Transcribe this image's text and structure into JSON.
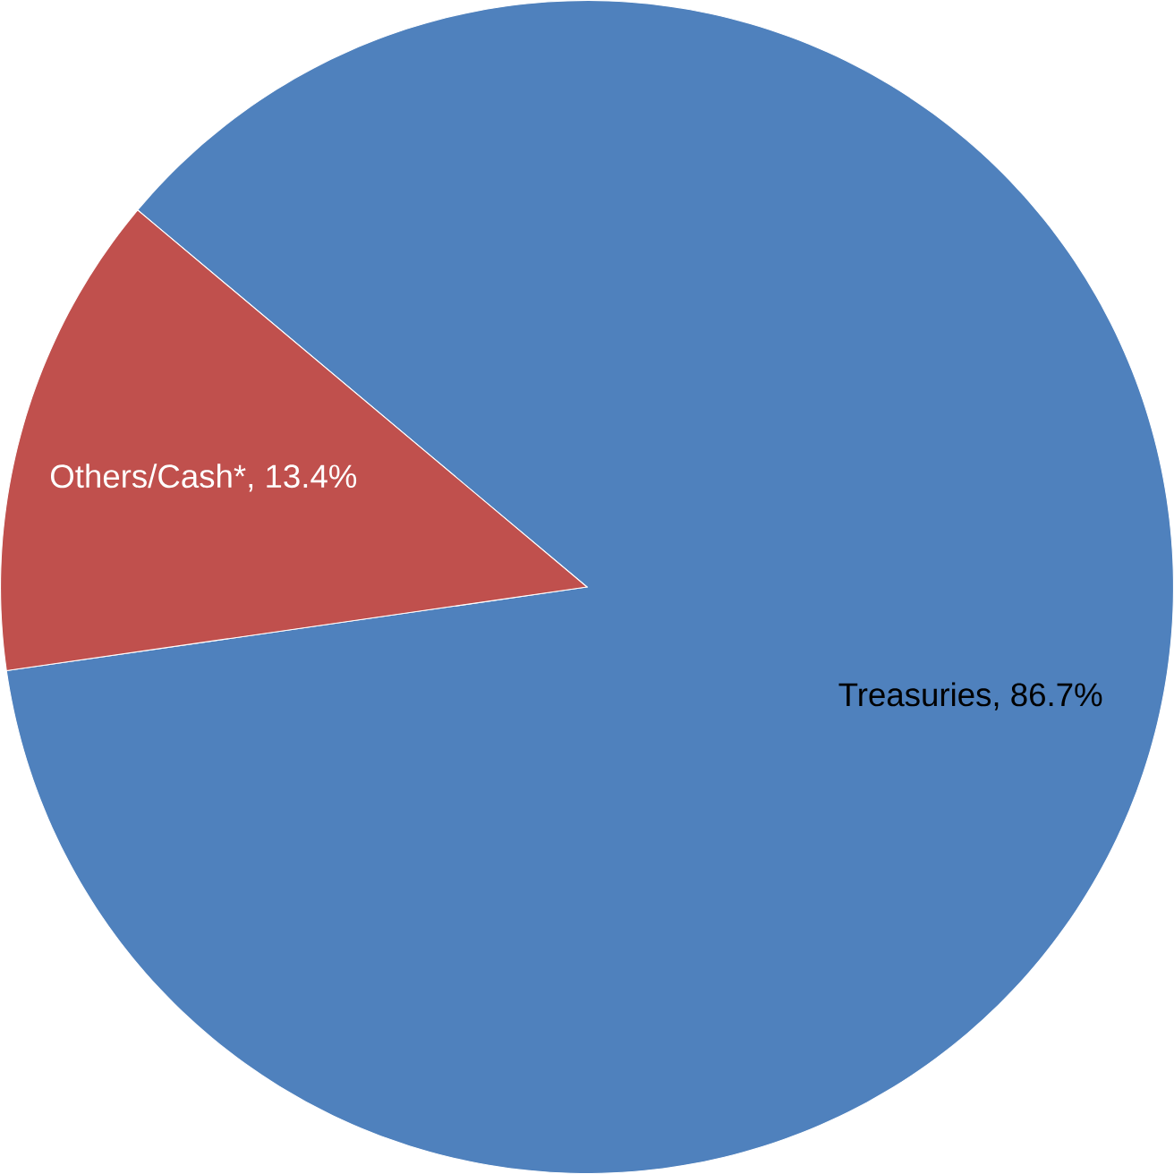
{
  "chart_data": {
    "type": "pie",
    "categories": [
      "Treasuries",
      "Others/Cash*"
    ],
    "values": [
      86.7,
      13.4
    ],
    "colors": [
      "#4f81bd",
      "#c0504d"
    ],
    "value_labels": [
      ", 86.7%",
      ", 13.4%"
    ]
  }
}
